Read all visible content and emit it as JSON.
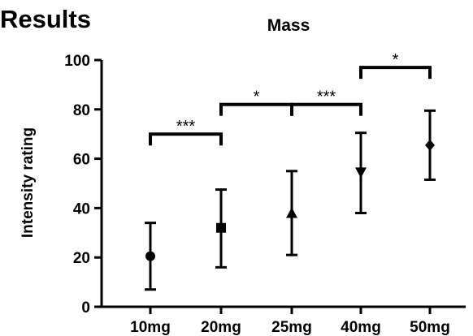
{
  "page": {
    "heading": "Results"
  },
  "chart_data": {
    "type": "scatter",
    "title": "Mass",
    "xlabel": "",
    "ylabel": "Intensity rating",
    "ylim": [
      0,
      100
    ],
    "yticks": [
      0,
      20,
      40,
      60,
      80,
      100
    ],
    "categories": [
      "10mg",
      "20mg",
      "25mg",
      "40mg",
      "50mg"
    ],
    "series": [
      {
        "markers": [
          "circle",
          "square",
          "triangle-up",
          "triangle-down",
          "diamond"
        ],
        "values": [
          20.5,
          32,
          38,
          54.5,
          65.5
        ],
        "error_low": [
          7,
          16,
          21,
          38,
          51.5
        ],
        "error_high": [
          34,
          47.5,
          55,
          70.5,
          79.5
        ]
      }
    ],
    "significance": [
      {
        "from": "10mg",
        "to": "20mg",
        "label": "***",
        "y": 70
      },
      {
        "from": "20mg",
        "to": "25mg",
        "label": "*",
        "y": 82
      },
      {
        "from": "25mg",
        "to": "40mg",
        "label": "***",
        "y": 82
      },
      {
        "from": "40mg",
        "to": "50mg",
        "label": "*",
        "y": 97
      }
    ],
    "grid": false,
    "legend": "none"
  }
}
